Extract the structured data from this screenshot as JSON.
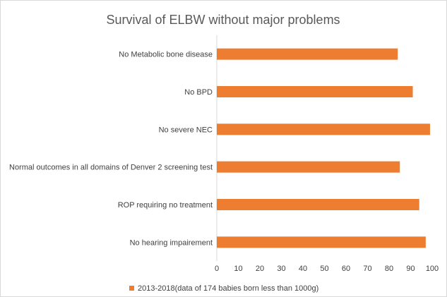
{
  "chart_data": {
    "type": "bar",
    "orientation": "horizontal",
    "title": "Survival of ELBW without major problems",
    "categories": [
      "No Metabolic bone disease",
      "No BPD",
      "No severe NEC",
      "Normal outcomes in all domains of Denver 2 screening test",
      "ROP requiring no treatment",
      "No hearing impairement"
    ],
    "series": [
      {
        "name": "2013-2018(data of 174 babies born less than 1000g)",
        "color": "#ED7D31",
        "values": [
          84,
          91,
          99,
          85,
          94,
          97
        ]
      }
    ],
    "xticks": [
      "0",
      "10",
      "20",
      "30",
      "40",
      "50",
      "60",
      "70",
      "80",
      "90",
      "100"
    ],
    "xlim": [
      0,
      100
    ],
    "xlabel": "",
    "ylabel": "",
    "grid": false,
    "legend_position": "bottom-left"
  }
}
